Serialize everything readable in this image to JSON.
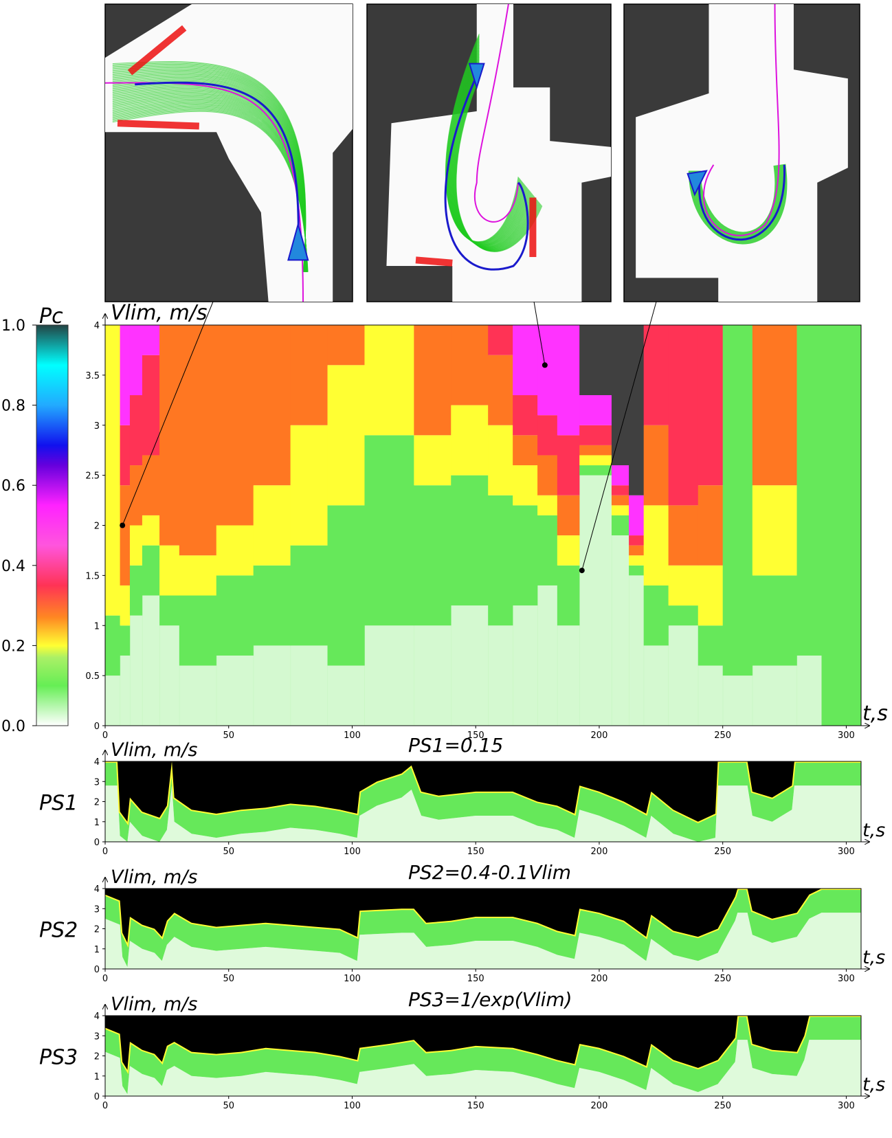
{
  "colors": {
    "green": "#66e85a",
    "lightgreen": "#b8f5b0",
    "yellow": "#ffff33",
    "orange": "#ff7722",
    "red": "#ff3355",
    "magenta": "#ff33ff",
    "blue": "#1111ee",
    "cyan": "#00ffff",
    "dark": "#404040",
    "black": "#000000",
    "trajectory_green": "#22cc22",
    "path_blue": "#1a1acc",
    "path_magenta": "#dd11dd",
    "obstacle_red": "#ee1111"
  },
  "colorbar": {
    "label": "Pc",
    "ticks": [
      "0.0",
      "0.2",
      "0.4",
      "0.6",
      "0.8",
      "1.0"
    ],
    "tick_values": [
      0.0,
      0.2,
      0.4,
      0.6,
      0.8,
      1.0
    ]
  },
  "insets": [
    {
      "icon": "map-left-turn-icon"
    },
    {
      "icon": "map-u-turn-icon"
    },
    {
      "icon": "map-loop-turn-icon"
    }
  ],
  "chart_data": [
    {
      "type": "heatmap",
      "ylabel": "Vlim, m/s",
      "xlabel": "t,s",
      "xlim": [
        0,
        306
      ],
      "ylim": [
        0,
        4
      ],
      "xticks": [
        "0",
        "50",
        "100",
        "150",
        "200",
        "250",
        "300"
      ],
      "yticks": [
        "0",
        "0.5",
        "1",
        "1.5",
        "2",
        "2.5",
        "3",
        "3.5",
        "4"
      ],
      "annotations": [
        {
          "x": 7,
          "y": 2.0
        },
        {
          "x": 178,
          "y": 3.6
        },
        {
          "x": 193,
          "y": 1.55
        }
      ],
      "bands": [
        {
          "t0": 0,
          "t1": 6,
          "green": 0.5,
          "yellow": 1.1,
          "orange": 4,
          "red": 4,
          "magenta": 4,
          "dark": 4
        },
        {
          "t0": 6,
          "t1": 10,
          "green": 0.7,
          "yellow": 1.0,
          "orange": 1.4,
          "red": 2.4,
          "magenta": 3.0,
          "dark": 4
        },
        {
          "t0": 10,
          "t1": 15,
          "green": 1.1,
          "yellow": 1.6,
          "orange": 2.0,
          "red": 2.6,
          "magenta": 3.3,
          "dark": 4
        },
        {
          "t0": 15,
          "t1": 22,
          "green": 1.3,
          "yellow": 1.8,
          "orange": 2.1,
          "red": 2.7,
          "magenta": 3.7,
          "dark": 4
        },
        {
          "t0": 22,
          "t1": 30,
          "green": 1.0,
          "yellow": 1.3,
          "orange": 1.8,
          "red": 4,
          "magenta": 4,
          "dark": 4
        },
        {
          "t0": 30,
          "t1": 45,
          "green": 0.6,
          "yellow": 1.3,
          "orange": 1.7,
          "red": 4,
          "magenta": 4,
          "dark": 4
        },
        {
          "t0": 45,
          "t1": 60,
          "green": 0.7,
          "yellow": 1.5,
          "orange": 2.0,
          "red": 4,
          "magenta": 4,
          "dark": 4
        },
        {
          "t0": 60,
          "t1": 75,
          "green": 0.8,
          "yellow": 1.6,
          "orange": 2.4,
          "red": 4,
          "magenta": 4,
          "dark": 4
        },
        {
          "t0": 75,
          "t1": 90,
          "green": 0.8,
          "yellow": 1.8,
          "orange": 3.0,
          "red": 4,
          "magenta": 4,
          "dark": 4
        },
        {
          "t0": 90,
          "t1": 105,
          "green": 0.6,
          "yellow": 2.2,
          "orange": 3.6,
          "red": 4,
          "magenta": 4,
          "dark": 4
        },
        {
          "t0": 105,
          "t1": 125,
          "green": 1.0,
          "yellow": 2.9,
          "orange": 4,
          "red": 4,
          "magenta": 4,
          "dark": 4
        },
        {
          "t0": 125,
          "t1": 140,
          "green": 1.0,
          "yellow": 2.4,
          "orange": 2.9,
          "red": 4,
          "magenta": 4,
          "dark": 4
        },
        {
          "t0": 140,
          "t1": 155,
          "green": 1.2,
          "yellow": 2.5,
          "orange": 3.2,
          "red": 4,
          "magenta": 4,
          "dark": 4
        },
        {
          "t0": 155,
          "t1": 165,
          "green": 1.0,
          "yellow": 2.3,
          "orange": 3.0,
          "red": 3.7,
          "magenta": 4,
          "dark": 4
        },
        {
          "t0": 165,
          "t1": 175,
          "green": 1.2,
          "yellow": 2.2,
          "orange": 2.6,
          "red": 2.9,
          "magenta": 3.3,
          "dark": 4
        },
        {
          "t0": 175,
          "t1": 183,
          "green": 1.4,
          "yellow": 2.1,
          "orange": 2.3,
          "red": 2.7,
          "magenta": 3.1,
          "dark": 4
        },
        {
          "t0": 183,
          "t1": 192,
          "green": 1.0,
          "yellow": 1.6,
          "orange": 1.9,
          "red": 2.3,
          "magenta": 2.9,
          "dark": 4
        },
        {
          "t0": 192,
          "t1": 205,
          "green": 2.5,
          "yellow": 2.6,
          "orange": 2.7,
          "red": 2.8,
          "magenta": 3.0,
          "dark": 3.3
        },
        {
          "t0": 205,
          "t1": 212,
          "green": 1.9,
          "yellow": 2.1,
          "orange": 2.2,
          "red": 2.3,
          "magenta": 2.4,
          "dark": 2.6
        },
        {
          "t0": 212,
          "t1": 218,
          "green": 1.5,
          "yellow": 1.6,
          "orange": 1.7,
          "red": 1.8,
          "magenta": 1.9,
          "dark": 2.3
        },
        {
          "t0": 218,
          "t1": 228,
          "green": 0.8,
          "yellow": 1.4,
          "orange": 2.2,
          "red": 3.0,
          "magenta": 4,
          "dark": 4
        },
        {
          "t0": 228,
          "t1": 240,
          "green": 1.0,
          "yellow": 1.2,
          "orange": 1.6,
          "red": 2.2,
          "magenta": 4,
          "dark": 4
        },
        {
          "t0": 240,
          "t1": 250,
          "green": 0.6,
          "yellow": 1.0,
          "orange": 1.6,
          "red": 2.4,
          "magenta": 4,
          "dark": 4
        },
        {
          "t0": 250,
          "t1": 262,
          "green": 0.5,
          "yellow": 4,
          "orange": 4,
          "red": 4,
          "magenta": 4,
          "dark": 4
        },
        {
          "t0": 262,
          "t1": 280,
          "green": 0.6,
          "yellow": 1.5,
          "orange": 2.4,
          "red": 4,
          "magenta": 4,
          "dark": 4
        },
        {
          "t0": 280,
          "t1": 290,
          "green": 0.7,
          "yellow": 4,
          "orange": 4,
          "red": 4,
          "magenta": 4,
          "dark": 4
        },
        {
          "t0": 290,
          "t1": 306,
          "green": 0,
          "yellow": 4,
          "orange": 4,
          "red": 4,
          "magenta": 4,
          "dark": 4
        }
      ]
    },
    {
      "type": "heatmap",
      "side_label": "PS1",
      "title": "PS1=0.15",
      "ylabel": "Vlim, m/s",
      "xlabel": "t,s",
      "xlim": [
        0,
        306
      ],
      "ylim": [
        0,
        4
      ],
      "xticks": [
        "0",
        "50",
        "100",
        "150",
        "200",
        "250",
        "300"
      ],
      "yticks": [
        "0",
        "1",
        "2",
        "3",
        "4"
      ],
      "boundary": [
        [
          0,
          4
        ],
        [
          5,
          4
        ],
        [
          6,
          1.5
        ],
        [
          9,
          1.0
        ],
        [
          10,
          2.2
        ],
        [
          15,
          1.5
        ],
        [
          22,
          1.2
        ],
        [
          25,
          1.8
        ],
        [
          27,
          4
        ],
        [
          28,
          2.2
        ],
        [
          35,
          1.6
        ],
        [
          45,
          1.4
        ],
        [
          55,
          1.6
        ],
        [
          65,
          1.7
        ],
        [
          75,
          1.9
        ],
        [
          85,
          1.8
        ],
        [
          95,
          1.6
        ],
        [
          102,
          1.4
        ],
        [
          103,
          2.5
        ],
        [
          110,
          3.0
        ],
        [
          120,
          3.4
        ],
        [
          124,
          3.8
        ],
        [
          128,
          2.5
        ],
        [
          135,
          2.3
        ],
        [
          150,
          2.5
        ],
        [
          165,
          2.5
        ],
        [
          175,
          2.0
        ],
        [
          183,
          1.8
        ],
        [
          190,
          1.4
        ],
        [
          192,
          2.8
        ],
        [
          200,
          2.5
        ],
        [
          210,
          2.0
        ],
        [
          219,
          1.4
        ],
        [
          221,
          2.5
        ],
        [
          230,
          1.6
        ],
        [
          240,
          1.0
        ],
        [
          247,
          1.4
        ],
        [
          248,
          4
        ],
        [
          260,
          4
        ],
        [
          262,
          2.5
        ],
        [
          270,
          2.2
        ],
        [
          278,
          2.8
        ],
        [
          279,
          4
        ],
        [
          306,
          4
        ]
      ],
      "green_low": 0.7
    },
    {
      "type": "heatmap",
      "side_label": "PS2",
      "title": "PS2=0.4-0.1Vlim",
      "ylabel": "Vlim, m/s",
      "xlabel": "t,s",
      "xlim": [
        0,
        306
      ],
      "ylim": [
        0,
        4
      ],
      "xticks": [
        "0",
        "50",
        "100",
        "150",
        "200",
        "250",
        "300"
      ],
      "yticks": [
        "0",
        "1",
        "2",
        "3",
        "4"
      ],
      "boundary": [
        [
          0,
          3.7
        ],
        [
          6,
          3.4
        ],
        [
          7,
          1.8
        ],
        [
          9,
          1.3
        ],
        [
          10,
          2.6
        ],
        [
          15,
          2.2
        ],
        [
          20,
          2.0
        ],
        [
          23,
          1.6
        ],
        [
          25,
          2.4
        ],
        [
          28,
          2.8
        ],
        [
          35,
          2.3
        ],
        [
          45,
          2.1
        ],
        [
          55,
          2.2
        ],
        [
          65,
          2.3
        ],
        [
          75,
          2.2
        ],
        [
          85,
          2.1
        ],
        [
          95,
          2.0
        ],
        [
          102,
          1.6
        ],
        [
          103,
          2.9
        ],
        [
          120,
          3.0
        ],
        [
          125,
          3.0
        ],
        [
          130,
          2.3
        ],
        [
          140,
          2.4
        ],
        [
          150,
          2.6
        ],
        [
          165,
          2.6
        ],
        [
          175,
          2.3
        ],
        [
          183,
          1.9
        ],
        [
          190,
          1.7
        ],
        [
          192,
          3.0
        ],
        [
          200,
          2.8
        ],
        [
          210,
          2.4
        ],
        [
          219,
          1.6
        ],
        [
          221,
          2.7
        ],
        [
          230,
          1.9
        ],
        [
          240,
          1.6
        ],
        [
          248,
          2.0
        ],
        [
          255,
          3.6
        ],
        [
          256,
          4
        ],
        [
          260,
          4
        ],
        [
          262,
          2.9
        ],
        [
          270,
          2.5
        ],
        [
          280,
          2.8
        ],
        [
          285,
          3.7
        ],
        [
          290,
          4
        ],
        [
          306,
          4
        ]
      ],
      "green_low": 0.6
    },
    {
      "type": "heatmap",
      "side_label": "PS3",
      "title": "PS3=1/exp(Vlim)",
      "ylabel": "Vlim, m/s",
      "xlabel": "t,s",
      "xlim": [
        0,
        306
      ],
      "ylim": [
        0,
        4
      ],
      "xticks": [
        "0",
        "50",
        "100",
        "150",
        "200",
        "250",
        "300"
      ],
      "yticks": [
        "0",
        "1",
        "2",
        "3",
        "4"
      ],
      "boundary": [
        [
          0,
          3.4
        ],
        [
          6,
          3.1
        ],
        [
          7,
          1.7
        ],
        [
          9,
          1.3
        ],
        [
          10,
          2.7
        ],
        [
          15,
          2.3
        ],
        [
          20,
          2.1
        ],
        [
          23,
          1.7
        ],
        [
          25,
          2.5
        ],
        [
          28,
          2.7
        ],
        [
          35,
          2.2
        ],
        [
          45,
          2.1
        ],
        [
          55,
          2.2
        ],
        [
          65,
          2.4
        ],
        [
          75,
          2.3
        ],
        [
          85,
          2.2
        ],
        [
          95,
          2.0
        ],
        [
          102,
          1.8
        ],
        [
          103,
          2.4
        ],
        [
          115,
          2.6
        ],
        [
          125,
          2.8
        ],
        [
          130,
          2.2
        ],
        [
          140,
          2.3
        ],
        [
          150,
          2.5
        ],
        [
          165,
          2.4
        ],
        [
          175,
          2.1
        ],
        [
          183,
          1.8
        ],
        [
          190,
          1.6
        ],
        [
          192,
          2.6
        ],
        [
          200,
          2.4
        ],
        [
          210,
          2.0
        ],
        [
          219,
          1.5
        ],
        [
          221,
          2.6
        ],
        [
          230,
          1.8
        ],
        [
          240,
          1.4
        ],
        [
          248,
          1.8
        ],
        [
          255,
          2.9
        ],
        [
          256,
          4
        ],
        [
          260,
          4
        ],
        [
          262,
          2.6
        ],
        [
          270,
          2.3
        ],
        [
          280,
          2.2
        ],
        [
          283,
          3.0
        ],
        [
          285,
          4
        ],
        [
          306,
          4
        ]
      ],
      "green_low": 0.6
    }
  ]
}
